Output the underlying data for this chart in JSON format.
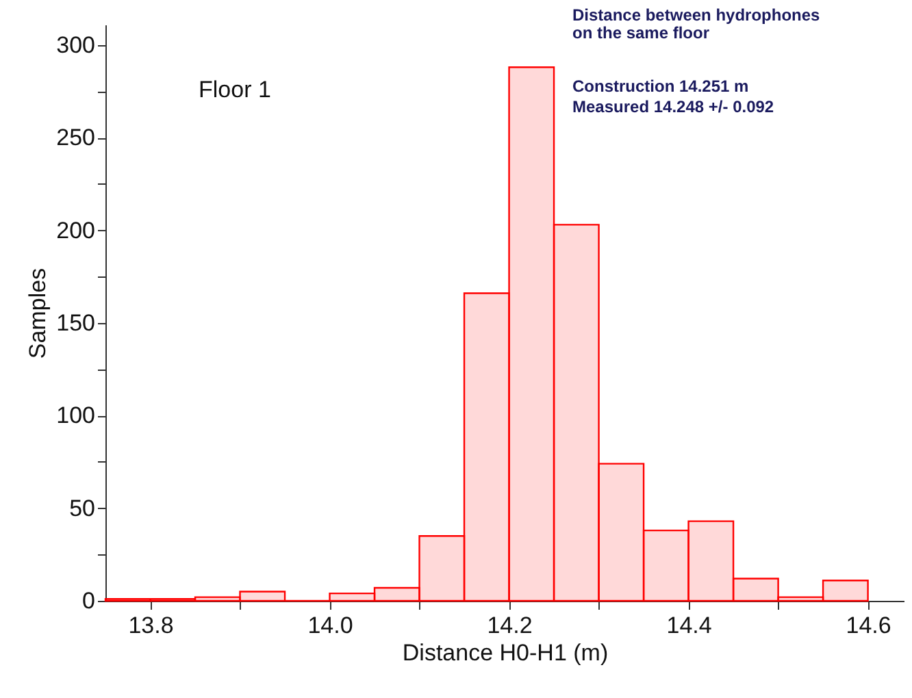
{
  "chart_data": {
    "type": "histogram",
    "xlabel": "Distance H0-H1 (m)",
    "ylabel": "Samples",
    "bins": [
      13.75,
      13.8,
      13.85,
      13.9,
      13.95,
      14.0,
      14.05,
      14.1,
      14.15,
      14.2,
      14.25,
      14.3,
      14.35,
      14.4,
      14.45,
      14.5,
      14.55,
      14.6
    ],
    "values": [
      1,
      1,
      2,
      5,
      0,
      4,
      7,
      35,
      166,
      288,
      203,
      74,
      38,
      43,
      12,
      2,
      11
    ],
    "color": "#ff0000",
    "xlim": [
      13.75,
      14.64
    ],
    "xticks": [
      13.8,
      {
        "value": 13.9,
        "label": null
      },
      {
        "value": 14.0,
        "label": "14.0"
      },
      {
        "value": 14.1,
        "label": null
      },
      14.2,
      {
        "value": 14.3,
        "label": null
      },
      14.4,
      {
        "value": 14.5,
        "label": null
      },
      14.6
    ],
    "ylim": [
      0,
      311
    ],
    "yticks": [
      0,
      {
        "value": 25,
        "label": null
      },
      50,
      {
        "value": 75,
        "label": null
      },
      100,
      {
        "value": 125,
        "label": null
      },
      150,
      {
        "value": 175,
        "label": null
      },
      200,
      {
        "value": 225,
        "label": null
      },
      250,
      {
        "value": 275,
        "label": null
      },
      300
    ],
    "grid": false,
    "annotations": [
      "Floor 1",
      "Distance between hydrophones\non the same floor",
      "Construction 14.251 m",
      "Measured      14.248 +/- 0.092"
    ]
  }
}
